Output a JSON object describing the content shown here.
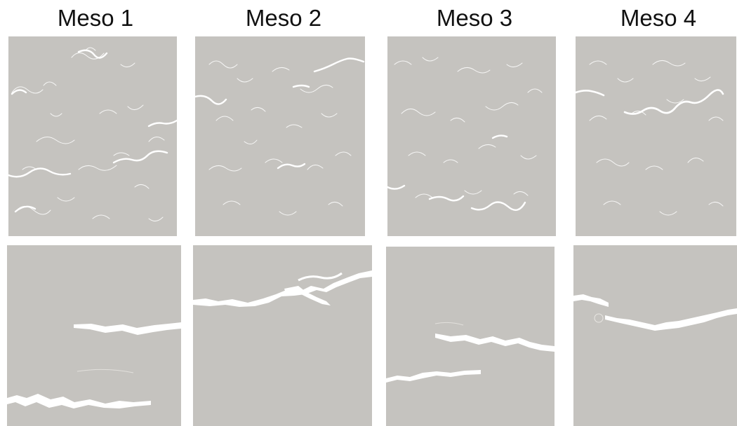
{
  "columns": [
    {
      "title": "Meso 1"
    },
    {
      "title": "Meso 2"
    },
    {
      "title": "Meso 3"
    },
    {
      "title": "Meso 4"
    }
  ],
  "colors": {
    "background": "#ffffff",
    "specimen": "#c5c3bf",
    "crack": "#ffffff",
    "text": "#111111"
  }
}
